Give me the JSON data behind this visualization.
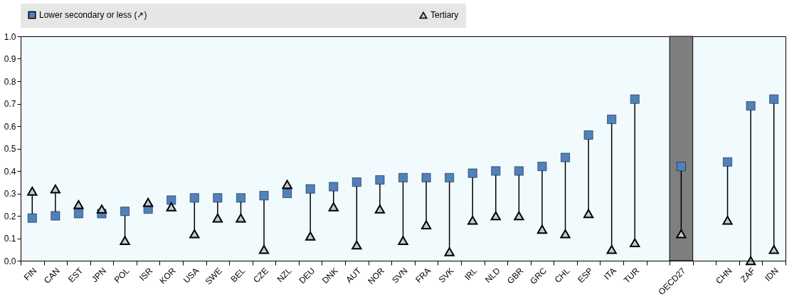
{
  "chart_data": {
    "type": "scatter",
    "categories": [
      "FIN",
      "CAN",
      "EST",
      "JPN",
      "POL",
      "ISR",
      "KOR",
      "USA",
      "SWE",
      "BEL",
      "CZE",
      "NZL",
      "DEU",
      "DNK",
      "AUT",
      "NOR",
      "SVN",
      "FRA",
      "SVK",
      "IRL",
      "NLD",
      "GBR",
      "GRC",
      "CHL",
      "ESP",
      "ITA",
      "TUR",
      null,
      "OECD27",
      null,
      "CHN",
      "ZAF",
      "IDN"
    ],
    "series": [
      {
        "name": "Lower secondary or less (↗)",
        "color": "#4f81bd",
        "marker": "square",
        "values": [
          0.19,
          0.2,
          0.21,
          0.21,
          0.22,
          0.23,
          0.27,
          0.28,
          0.28,
          0.28,
          0.29,
          0.3,
          0.32,
          0.33,
          0.35,
          0.36,
          0.37,
          0.37,
          0.37,
          0.39,
          0.4,
          0.4,
          0.42,
          0.46,
          0.56,
          0.63,
          0.72,
          null,
          0.42,
          null,
          0.44,
          0.69,
          0.72
        ]
      },
      {
        "name": "Tertiary",
        "color": "#c8c8c8",
        "marker": "triangle",
        "values": [
          0.31,
          0.32,
          0.25,
          0.23,
          0.09,
          0.26,
          0.24,
          0.12,
          0.19,
          0.19,
          0.05,
          0.34,
          0.11,
          0.24,
          0.07,
          0.23,
          0.09,
          0.16,
          0.04,
          0.18,
          0.2,
          0.2,
          0.14,
          0.12,
          0.21,
          0.05,
          0.08,
          null,
          0.12,
          null,
          0.18,
          0.0,
          0.05
        ]
      }
    ],
    "ylim": [
      0,
      1
    ],
    "yticks": [
      {
        "value": 0,
        "label": "0.0"
      },
      0.1,
      0.2,
      0.3,
      0.4,
      0.5,
      0.6,
      0.7,
      0.8,
      0.9,
      {
        "value": 1,
        "label": "1.0"
      }
    ],
    "bands": [
      {
        "axis": "x",
        "from": "OECD27",
        "to": "OECD27",
        "color": "#7f7f7f"
      }
    ],
    "legend": "top",
    "grid": false
  }
}
